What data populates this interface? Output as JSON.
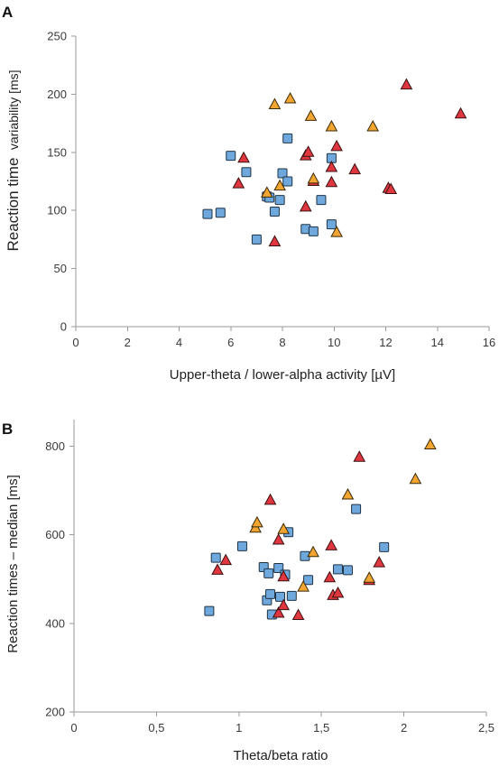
{
  "colors": {
    "square": "#6fa8dc",
    "triangle_red": "#e0363f",
    "triangle_orange": "#f2a531",
    "axis": "#9a9a9a"
  },
  "chart_data": [
    {
      "panel": "A",
      "type": "scatter",
      "title": "",
      "xlabel": "Upper-theta / lower-alpha activity [µV]",
      "ylabel_main": "Reaction time",
      "ylabel_small": "variability [ms]",
      "xlim": [
        0,
        16
      ],
      "ylim": [
        0,
        250
      ],
      "xticks": [
        "0",
        "2",
        "4",
        "6",
        "8",
        "10",
        "12",
        "14",
        "16"
      ],
      "yticks": [
        "0",
        "50",
        "100",
        "150",
        "200",
        "250"
      ],
      "xtick_values": [
        0,
        2,
        4,
        6,
        8,
        10,
        12,
        14,
        16
      ],
      "ytick_values": [
        0,
        50,
        100,
        150,
        200,
        250
      ],
      "grid": false,
      "series": [
        {
          "marker": "square",
          "color": "#6fa8dc",
          "points": [
            [
              5.1,
              97
            ],
            [
              5.6,
              98
            ],
            [
              6.0,
              147
            ],
            [
              6.6,
              133
            ],
            [
              7.0,
              75
            ],
            [
              7.4,
              112
            ],
            [
              7.5,
              111
            ],
            [
              7.7,
              99
            ],
            [
              7.9,
              109
            ],
            [
              8.0,
              132
            ],
            [
              8.2,
              125
            ],
            [
              8.2,
              162
            ],
            [
              8.9,
              84
            ],
            [
              9.2,
              82
            ],
            [
              9.5,
              109
            ],
            [
              9.9,
              145
            ],
            [
              9.9,
              88
            ]
          ]
        },
        {
          "marker": "triangle",
          "color": "#e0363f",
          "points": [
            [
              6.3,
              123
            ],
            [
              6.5,
              145
            ],
            [
              7.7,
              73
            ],
            [
              8.9,
              103
            ],
            [
              8.9,
              147
            ],
            [
              9.0,
              150
            ],
            [
              9.2,
              125
            ],
            [
              9.9,
              137
            ],
            [
              9.9,
              124
            ],
            [
              10.1,
              155
            ],
            [
              10.8,
              135
            ],
            [
              12.1,
              119
            ],
            [
              12.2,
              118
            ],
            [
              12.8,
              208
            ],
            [
              14.9,
              183
            ]
          ]
        },
        {
          "marker": "triangle",
          "color": "#f2a531",
          "points": [
            [
              7.4,
              115
            ],
            [
              7.7,
              191
            ],
            [
              7.9,
              121
            ],
            [
              8.3,
              196
            ],
            [
              9.1,
              181
            ],
            [
              9.2,
              127
            ],
            [
              9.9,
              172
            ],
            [
              10.1,
              81
            ],
            [
              11.5,
              172
            ]
          ]
        }
      ]
    },
    {
      "panel": "B",
      "type": "scatter",
      "title": "",
      "xlabel": "Theta/beta ratio",
      "ylabel": "Reaction times – median [ms]",
      "xlim": [
        0,
        2.5
      ],
      "ylim": [
        200,
        860
      ],
      "xticks": [
        "0",
        "0,5",
        "1",
        "1,5",
        "2",
        "2,5"
      ],
      "yticks": [
        "200",
        "400",
        "600",
        "800"
      ],
      "xtick_values": [
        0,
        0.5,
        1,
        1.5,
        2,
        2.5
      ],
      "ytick_values": [
        200,
        400,
        600,
        800
      ],
      "grid": false,
      "series": [
        {
          "marker": "square",
          "color": "#6fa8dc",
          "points": [
            [
              0.82,
              428
            ],
            [
              0.86,
              548
            ],
            [
              1.02,
              574
            ],
            [
              1.15,
              527
            ],
            [
              1.17,
              452
            ],
            [
              1.18,
              513
            ],
            [
              1.19,
              466
            ],
            [
              1.2,
              420
            ],
            [
              1.24,
              525
            ],
            [
              1.25,
              460
            ],
            [
              1.28,
              510
            ],
            [
              1.3,
              606
            ],
            [
              1.32,
              462
            ],
            [
              1.4,
              552
            ],
            [
              1.42,
              498
            ],
            [
              1.6,
              522
            ],
            [
              1.66,
              520
            ],
            [
              1.71,
              658
            ],
            [
              1.88,
              572
            ]
          ]
        },
        {
          "marker": "triangle",
          "color": "#e0363f",
          "points": [
            [
              0.87,
              520
            ],
            [
              0.92,
              542
            ],
            [
              1.19,
              678
            ],
            [
              1.24,
              588
            ],
            [
              1.24,
              423
            ],
            [
              1.27,
              505
            ],
            [
              1.27,
              440
            ],
            [
              1.36,
              418
            ],
            [
              1.55,
              503
            ],
            [
              1.56,
              575
            ],
            [
              1.57,
              463
            ],
            [
              1.6,
              468
            ],
            [
              1.73,
              775
            ],
            [
              1.79,
              497
            ],
            [
              1.85,
              537
            ]
          ]
        },
        {
          "marker": "triangle",
          "color": "#f2a531",
          "points": [
            [
              1.1,
              615
            ],
            [
              1.11,
              627
            ],
            [
              1.27,
              612
            ],
            [
              1.39,
              482
            ],
            [
              1.45,
              560
            ],
            [
              1.66,
              690
            ],
            [
              1.79,
              502
            ],
            [
              2.07,
              725
            ],
            [
              2.16,
              803
            ]
          ]
        }
      ]
    }
  ]
}
